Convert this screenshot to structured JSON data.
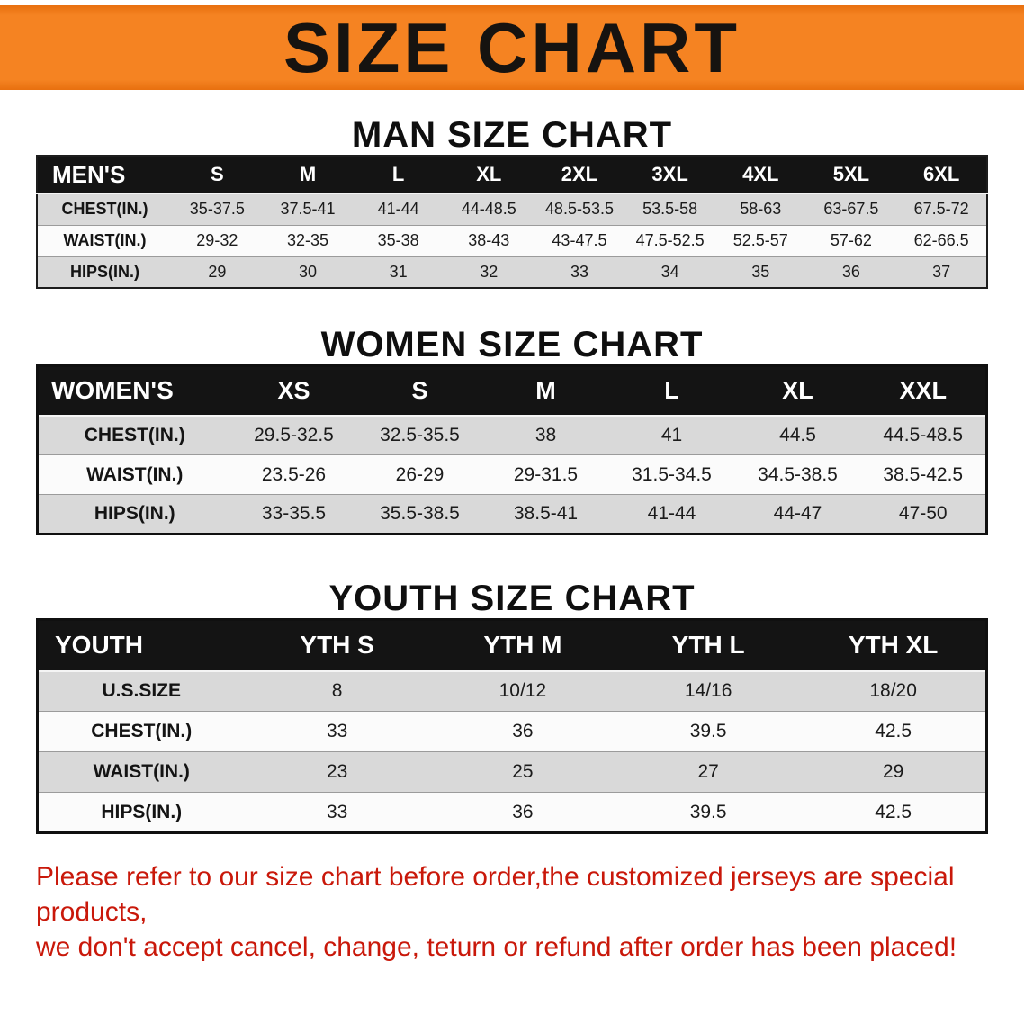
{
  "banner": {
    "title": "SIZE CHART",
    "bg_color": "#f58322"
  },
  "sections": {
    "men": {
      "heading": "MAN SIZE CHART",
      "table": {
        "header": [
          "MEN'S",
          "S",
          "M",
          "L",
          "XL",
          "2XL",
          "3XL",
          "4XL",
          "5XL",
          "6XL"
        ],
        "rows": [
          [
            "CHEST(IN.)",
            "35-37.5",
            "37.5-41",
            "41-44",
            "44-48.5",
            "48.5-53.5",
            "53.5-58",
            "58-63",
            "63-67.5",
            "67.5-72"
          ],
          [
            "WAIST(IN.)",
            "29-32",
            "32-35",
            "35-38",
            "38-43",
            "43-47.5",
            "47.5-52.5",
            "52.5-57",
            "57-62",
            "62-66.5"
          ],
          [
            "HIPS(IN.)",
            "29",
            "30",
            "31",
            "32",
            "33",
            "34",
            "35",
            "36",
            "37"
          ]
        ]
      }
    },
    "women": {
      "heading": "WOMEN SIZE CHART",
      "table": {
        "header": [
          "WOMEN'S",
          "XS",
          "S",
          "M",
          "L",
          "XL",
          "XXL"
        ],
        "rows": [
          [
            "CHEST(IN.)",
            "29.5-32.5",
            "32.5-35.5",
            "38",
            "41",
            "44.5",
            "44.5-48.5"
          ],
          [
            "WAIST(IN.)",
            "23.5-26",
            "26-29",
            "29-31.5",
            "31.5-34.5",
            "34.5-38.5",
            "38.5-42.5"
          ],
          [
            "HIPS(IN.)",
            "33-35.5",
            "35.5-38.5",
            "38.5-41",
            "41-44",
            "44-47",
            "47-50"
          ]
        ]
      }
    },
    "youth": {
      "heading": "YOUTH SIZE CHART",
      "table": {
        "header": [
          "YOUTH",
          "YTH S",
          "YTH M",
          "YTH L",
          "YTH XL"
        ],
        "rows": [
          [
            "U.S.SIZE",
            "8",
            "10/12",
            "14/16",
            "18/20"
          ],
          [
            "CHEST(IN.)",
            "33",
            "36",
            "39.5",
            "42.5"
          ],
          [
            "WAIST(IN.)",
            "23",
            "25",
            "27",
            "29"
          ],
          [
            "HIPS(IN.)",
            "33",
            "36",
            "39.5",
            "42.5"
          ]
        ]
      }
    }
  },
  "footer": {
    "line1": "Please refer to our size chart before order,the customized jerseys are special products,",
    "line2": "we don't accept cancel, change, teturn or refund after order has been placed!",
    "text_color": "#c9180a"
  }
}
